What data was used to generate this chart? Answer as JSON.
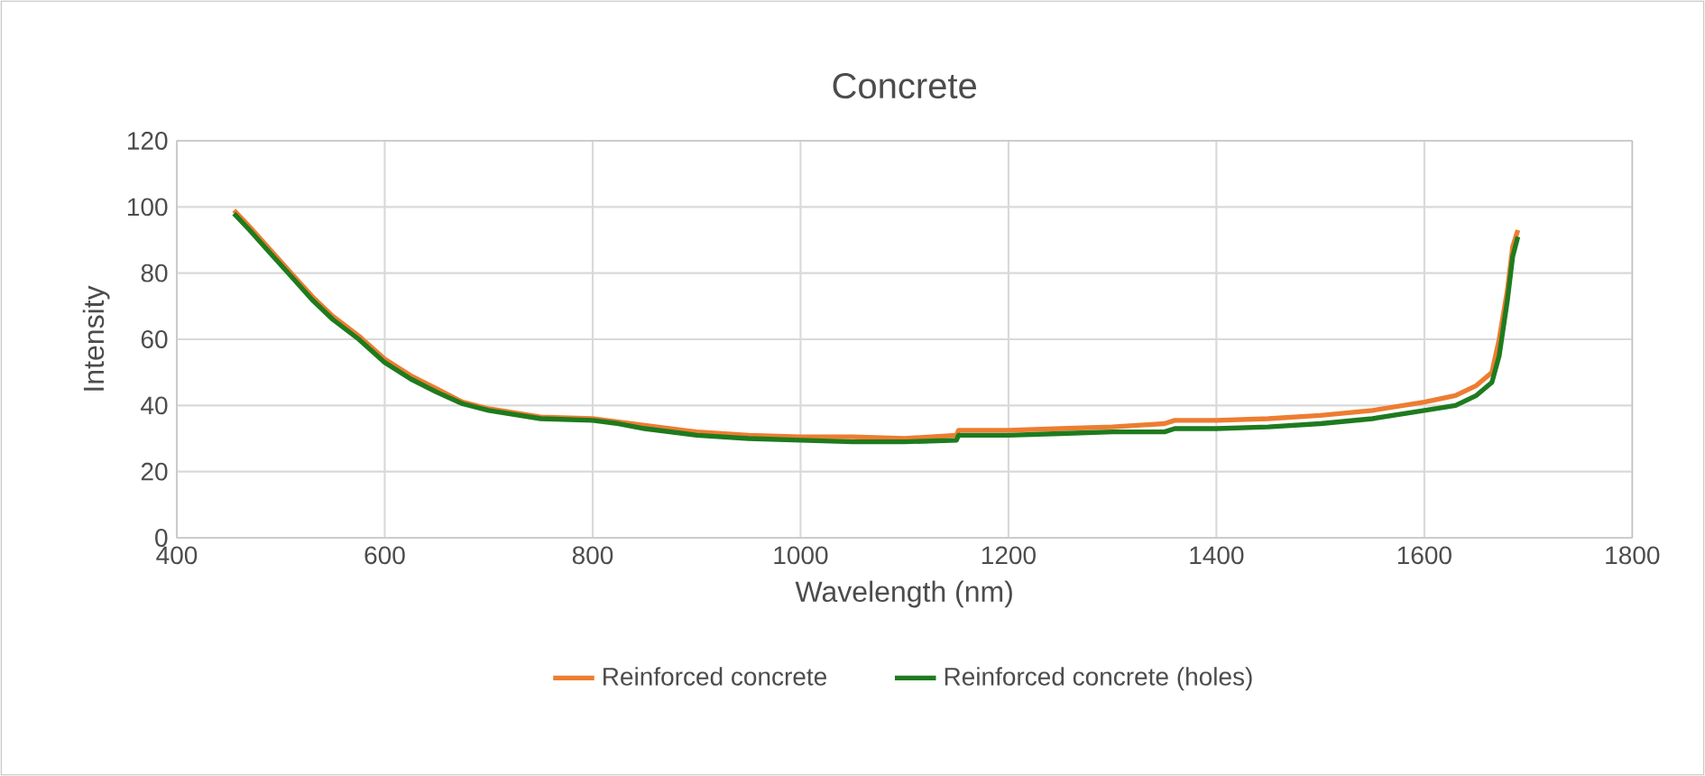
{
  "chart_data": {
    "type": "line",
    "title": "Concrete",
    "xlabel": "Wavelength (nm)",
    "ylabel": "Intensity",
    "xlim": [
      400,
      1800
    ],
    "xticks": [
      400,
      600,
      800,
      1000,
      1200,
      1400,
      1600,
      1800
    ],
    "ylim": [
      0,
      120
    ],
    "yticks": [
      0,
      20,
      40,
      60,
      80,
      100,
      120
    ],
    "grid": true,
    "legend": "bottom",
    "marker": "none",
    "line_style": "solid",
    "x": [
      455,
      470,
      490,
      510,
      530,
      550,
      575,
      600,
      625,
      650,
      675,
      700,
      750,
      800,
      825,
      850,
      900,
      950,
      1000,
      1050,
      1100,
      1150,
      1152,
      1200,
      1250,
      1300,
      1350,
      1360,
      1400,
      1450,
      1500,
      1550,
      1600,
      1630,
      1650,
      1665,
      1672,
      1680,
      1685,
      1690
    ],
    "series": [
      {
        "name": "Reinforced concrete",
        "color": "#ed7d31",
        "values": [
          99,
          94,
          87,
          80,
          73,
          67,
          61,
          54,
          49,
          45,
          41,
          39,
          36.5,
          36,
          35,
          34,
          32,
          31,
          30.5,
          30.5,
          30,
          31,
          32.5,
          32.5,
          33,
          33.5,
          34.5,
          35.5,
          35.5,
          36,
          37,
          38.5,
          41,
          43,
          46,
          50,
          60,
          75,
          88,
          93
        ]
      },
      {
        "name": "Reinforced concrete (holes)",
        "color": "#1e7b1e",
        "values": [
          98,
          93,
          86,
          79,
          72,
          66,
          60,
          53,
          48,
          44,
          40.5,
          38.5,
          36,
          35.5,
          34.5,
          33,
          31,
          30,
          29.5,
          29,
          29,
          29.5,
          31,
          31,
          31.5,
          32,
          32,
          33,
          33,
          33.5,
          34.5,
          36,
          38.5,
          40,
          43,
          47,
          55,
          72,
          85,
          91
        ]
      }
    ]
  }
}
